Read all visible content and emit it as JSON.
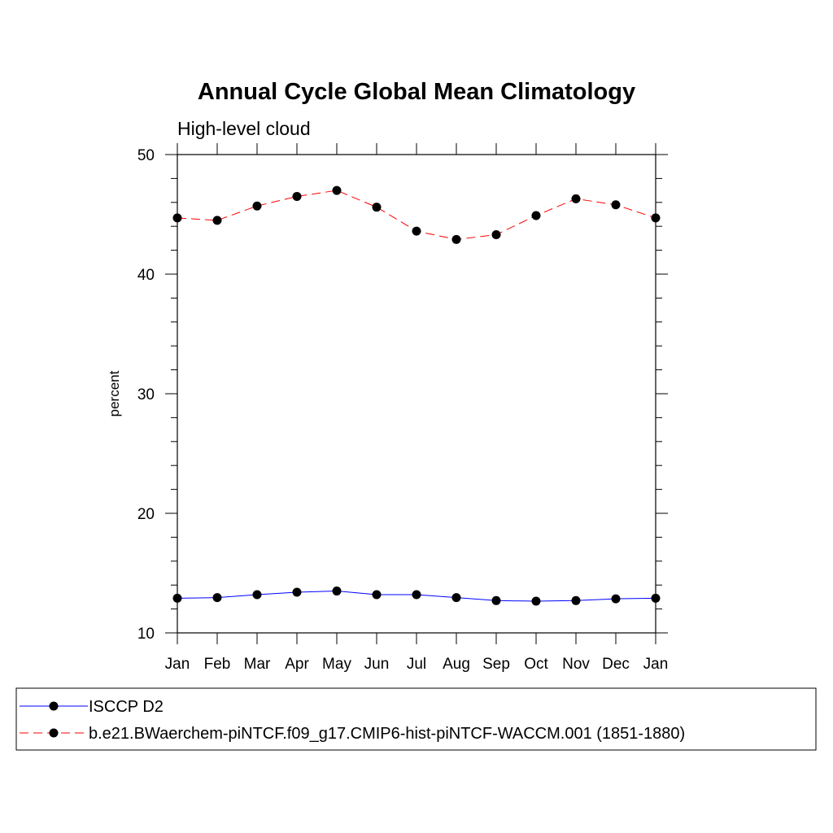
{
  "chart_data": {
    "type": "line",
    "title": "Annual Cycle Global Mean Climatology",
    "subtitle": "High-level cloud",
    "xlabel": "",
    "ylabel": "percent",
    "categories": [
      "Jan",
      "Feb",
      "Mar",
      "Apr",
      "May",
      "Jun",
      "Jul",
      "Aug",
      "Sep",
      "Oct",
      "Nov",
      "Dec",
      "Jan"
    ],
    "ylim": [
      10,
      50
    ],
    "yticks": [
      10,
      20,
      30,
      40,
      50
    ],
    "grid": false,
    "legend_position": "bottom",
    "series": [
      {
        "name": "ISCCP D2",
        "color": "#0000ff",
        "line_style": "solid",
        "marker": "filled-circle",
        "values": [
          12.9,
          12.95,
          13.2,
          13.4,
          13.5,
          13.2,
          13.2,
          12.95,
          12.7,
          12.65,
          12.7,
          12.85,
          12.9
        ]
      },
      {
        "name": "b.e21.BWaerchem-piNTCF.f09_g17.CMIP6-hist-piNTCF-WACCM.001 (1851-1880)",
        "color": "#ff0000",
        "line_style": "dashed",
        "marker": "filled-circle",
        "values": [
          44.7,
          44.5,
          45.7,
          46.5,
          47.0,
          45.6,
          43.6,
          42.9,
          43.3,
          44.9,
          46.3,
          45.8,
          44.7
        ]
      }
    ]
  }
}
